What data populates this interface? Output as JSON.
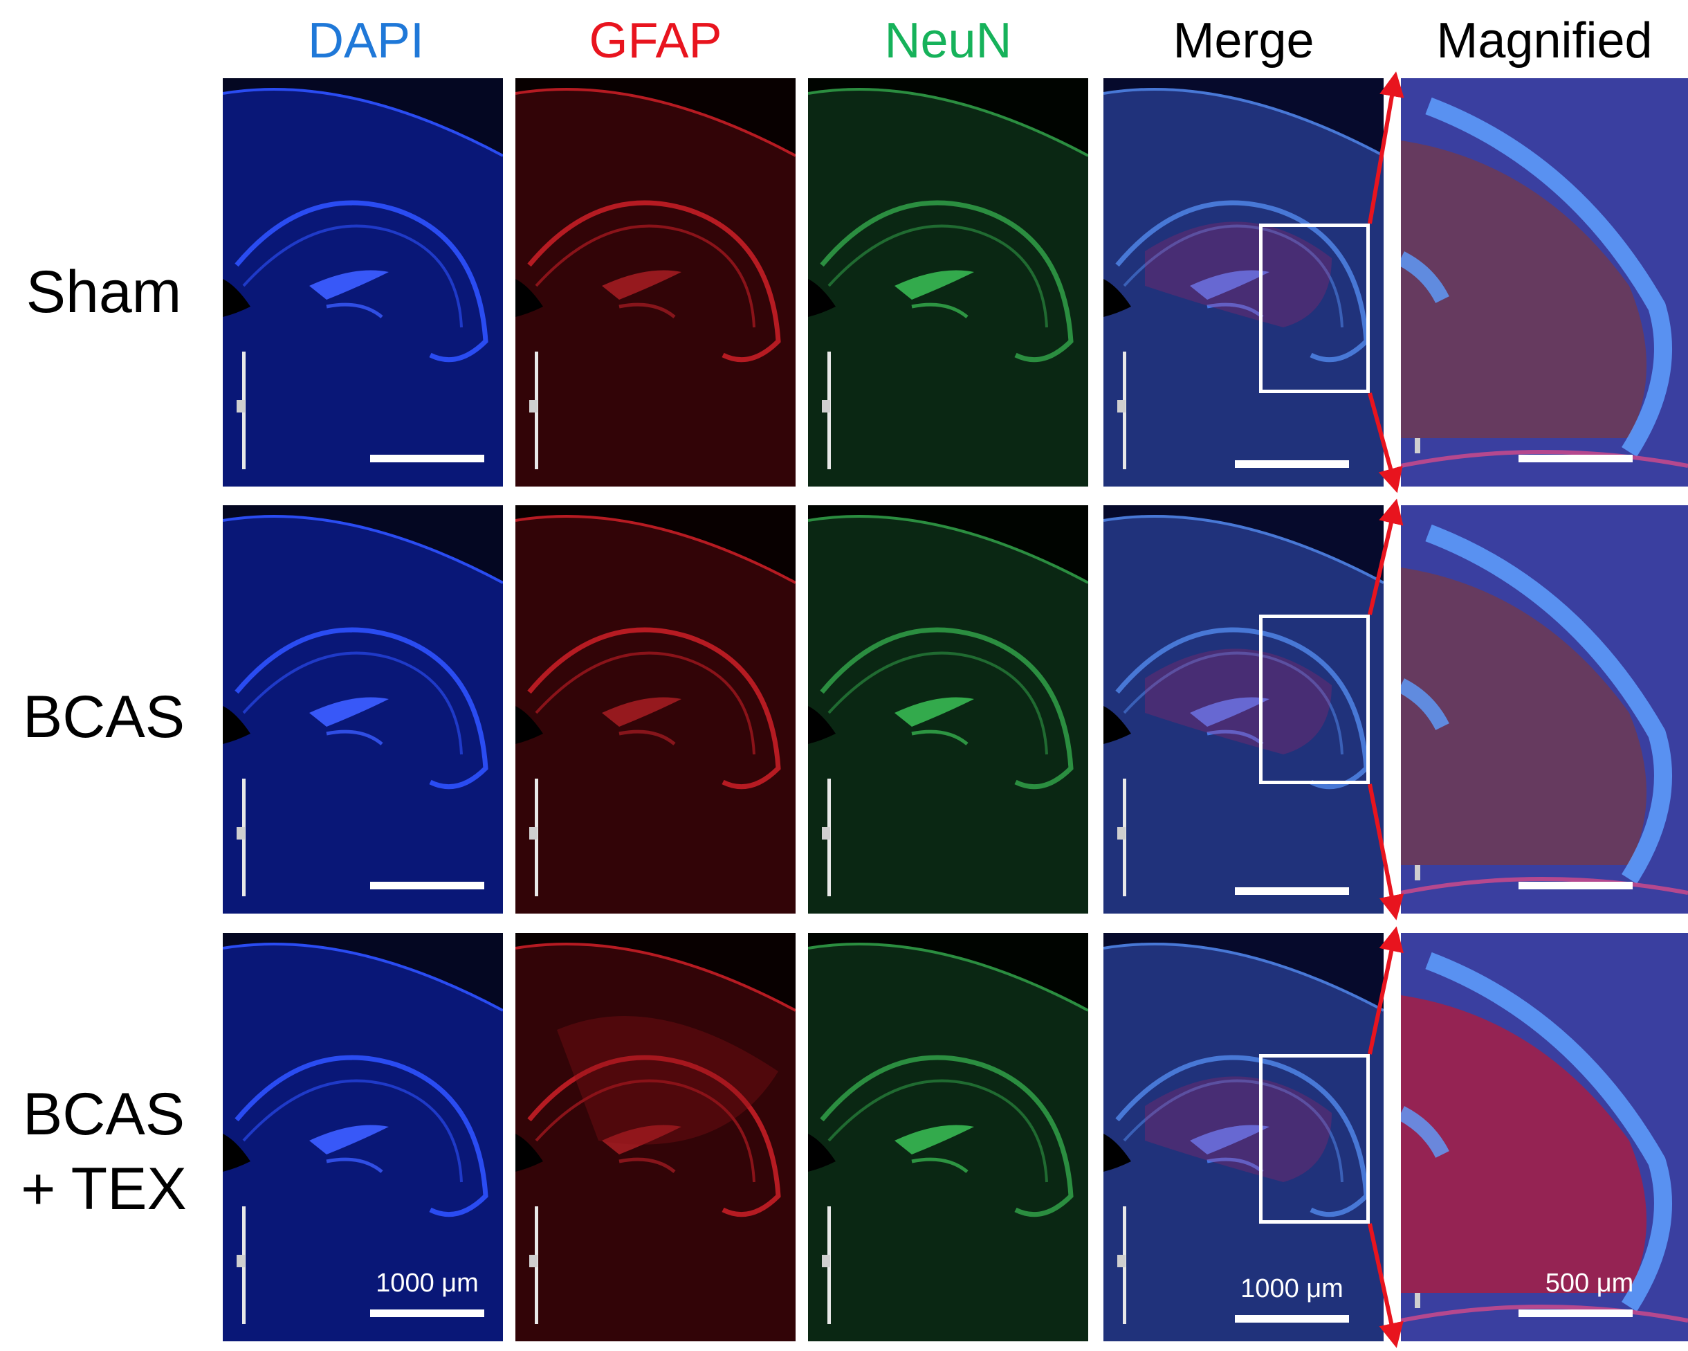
{
  "columns": [
    {
      "id": "dapi",
      "label": "DAPI",
      "color": "#1f78d8"
    },
    {
      "id": "gfap",
      "label": "GFAP",
      "color": "#e8141e"
    },
    {
      "id": "neun",
      "label": "NeuN",
      "color": "#16b25a"
    },
    {
      "id": "merge",
      "label": "Merge",
      "color": "#000000"
    },
    {
      "id": "magnified",
      "label": "Magnified",
      "color": "#000000"
    }
  ],
  "rows": [
    {
      "id": "sham",
      "label": "Sham"
    },
    {
      "id": "bcas",
      "label": "BCAS"
    },
    {
      "id": "bcas-tex",
      "label": "BCAS\n+ TEX"
    }
  ],
  "scale_bars": {
    "overview": "1000 μm",
    "magnified": "500 μm"
  },
  "colors": {
    "zoom_arrow": "#e8141e",
    "zoom_box": "#ffffff"
  }
}
